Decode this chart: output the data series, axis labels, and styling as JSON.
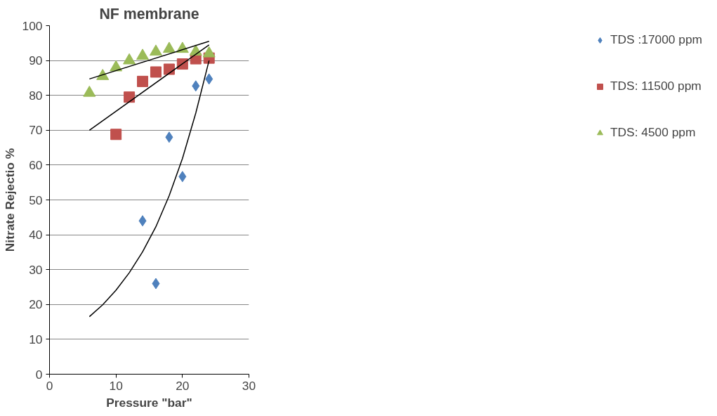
{
  "chart_data": {
    "type": "scatter",
    "title": "NF membrane",
    "xlabel": "Pressure \"bar\"",
    "ylabel": "Nitrate Rejectio %",
    "xlim": [
      0,
      30
    ],
    "xticks": [
      0,
      10,
      20,
      30
    ],
    "ylim": [
      0,
      100
    ],
    "yticks": [
      0,
      10,
      20,
      30,
      40,
      50,
      60,
      70,
      80,
      90,
      100
    ],
    "grid": "y",
    "legend": "right",
    "series": [
      {
        "name": "TDS :17000 ppm",
        "color": "#4f81bd",
        "marker": "diamond",
        "x": [
          14,
          16,
          18,
          20,
          22,
          24
        ],
        "values": [
          44,
          26,
          68,
          56.7,
          82.7,
          84.7
        ]
      },
      {
        "name": "TDS: 11500 ppm",
        "color": "#c0504d",
        "marker": "square",
        "x": [
          10,
          12,
          14,
          16,
          18,
          20,
          22,
          24
        ],
        "values": [
          68.8,
          79.5,
          84,
          86.7,
          87.5,
          89,
          90.5,
          90.7
        ]
      },
      {
        "name": "TDS: 4500 ppm",
        "color": "#9bbb59",
        "marker": "triangle",
        "x": [
          6,
          8,
          10,
          12,
          14,
          16,
          18,
          20,
          22,
          24
        ],
        "values": [
          80.7,
          85.5,
          88,
          90,
          91.3,
          92.5,
          93.3,
          93.3,
          92.5,
          92
        ]
      },
      {
        "type": "line",
        "color": "#000000",
        "x": [
          6,
          8,
          10,
          12,
          14,
          16,
          18,
          20,
          22,
          24
        ],
        "values": [
          16.5,
          19.9,
          24.1,
          29.1,
          35.1,
          42.3,
          51.2,
          61.9,
          74.9,
          90
        ]
      },
      {
        "type": "line",
        "color": "#000000",
        "x": [
          6,
          24
        ],
        "values": [
          70,
          94.5
        ]
      },
      {
        "type": "line",
        "color": "#000000",
        "x": [
          6,
          24
        ],
        "values": [
          84.7,
          95.5
        ]
      }
    ]
  }
}
